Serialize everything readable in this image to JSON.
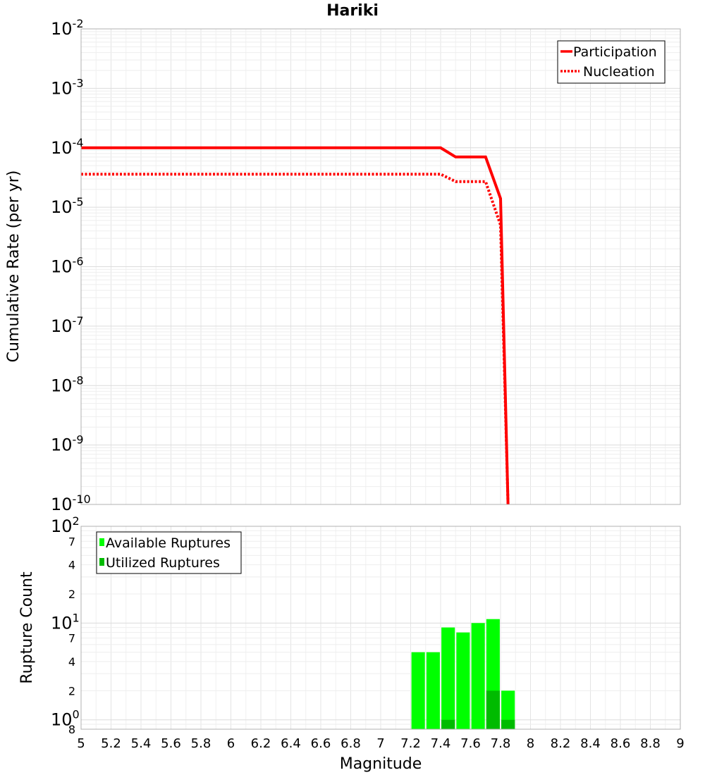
{
  "chart_data": [
    {
      "type": "line",
      "title": "Hariki",
      "ylabel": "Cumulative Rate (per yr)",
      "y_scale": "log",
      "ylim": [
        1e-10,
        0.01
      ],
      "xlim": [
        5,
        9
      ],
      "y_ticks": [
        {
          "base": "10",
          "exp": "-10"
        },
        {
          "base": "10",
          "exp": "-9"
        },
        {
          "base": "10",
          "exp": "-8"
        },
        {
          "base": "10",
          "exp": "-7"
        },
        {
          "base": "10",
          "exp": "-6"
        },
        {
          "base": "10",
          "exp": "-5"
        },
        {
          "base": "10",
          "exp": "-4"
        },
        {
          "base": "10",
          "exp": "-3"
        },
        {
          "base": "10",
          "exp": "-2"
        }
      ],
      "legend_position": "top-right",
      "grid": true,
      "series": [
        {
          "name": "Participation",
          "style": "solid",
          "color": "#ff0000",
          "x": [
            5.0,
            7.4,
            7.5,
            7.6,
            7.7,
            7.8,
            7.85
          ],
          "y": [
            0.0001,
            0.0001,
            7e-05,
            7e-05,
            7e-05,
            1.4e-05,
            1e-10
          ]
        },
        {
          "name": "Nucleation",
          "style": "dotted",
          "color": "#ff0000",
          "x": [
            5.0,
            7.4,
            7.5,
            7.6,
            7.7,
            7.8,
            7.85
          ],
          "y": [
            3.6e-05,
            3.6e-05,
            2.7e-05,
            2.7e-05,
            2.7e-05,
            5e-06,
            1e-10
          ]
        }
      ]
    },
    {
      "type": "bar",
      "ylabel": "Rupture Count",
      "xlabel": "Magnitude",
      "y_scale": "log",
      "ylim": [
        0.8,
        100
      ],
      "xlim": [
        5,
        9
      ],
      "x_ticks": [
        "5",
        "5.2",
        "5.4",
        "5.6",
        "5.8",
        "6",
        "6.2",
        "6.4",
        "6.6",
        "6.8",
        "7",
        "7.2",
        "7.4",
        "7.6",
        "7.8",
        "8",
        "8.2",
        "8.4",
        "8.6",
        "8.8",
        "9"
      ],
      "y_major_ticks": [
        {
          "value": 1,
          "base": "10",
          "exp": "0"
        },
        {
          "value": 10,
          "base": "10",
          "exp": "1"
        },
        {
          "value": 100,
          "base": "10",
          "exp": "2"
        }
      ],
      "y_minor_ticks": [
        {
          "value": 0.8,
          "label": "8"
        },
        {
          "value": 2,
          "label": "2"
        },
        {
          "value": 4,
          "label": "4"
        },
        {
          "value": 7,
          "label": "7"
        },
        {
          "value": 20,
          "label": "2"
        },
        {
          "value": 40,
          "label": "4"
        },
        {
          "value": 70,
          "label": "7"
        }
      ],
      "legend_position": "top-left",
      "grid": true,
      "bar_width": 0.09,
      "series": [
        {
          "name": "Available Ruptures",
          "color": "#00ff00",
          "x": [
            7.25,
            7.35,
            7.45,
            7.55,
            7.65,
            7.75,
            7.85
          ],
          "values": [
            5,
            5,
            9,
            8,
            10,
            11,
            2
          ]
        },
        {
          "name": "Utilized Ruptures",
          "color": "#00bb00",
          "x": [
            7.45,
            7.75,
            7.85
          ],
          "values": [
            1,
            2,
            1
          ]
        }
      ]
    }
  ]
}
